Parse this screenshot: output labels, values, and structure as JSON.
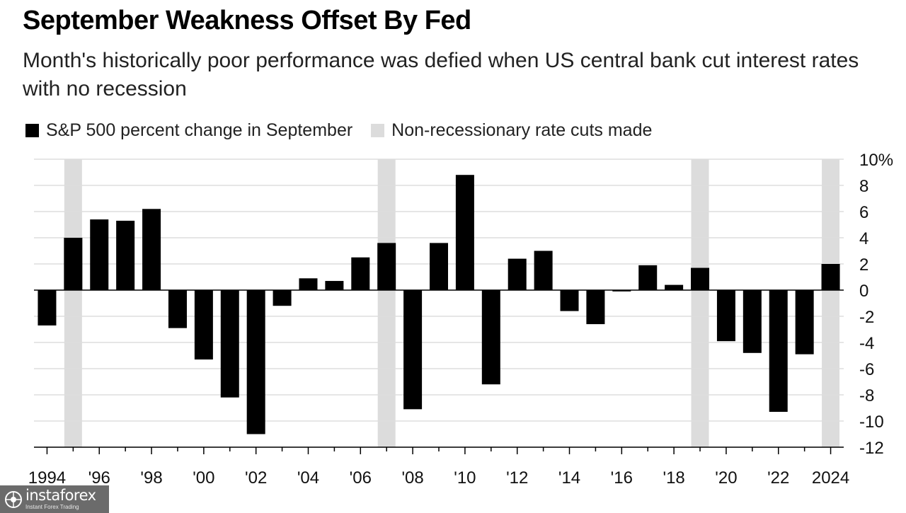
{
  "chart_data": {
    "type": "bar",
    "title": "September Weakness Offset By Fed",
    "subtitle": "Month's historically poor performance was defied when US central bank cut interest rates with no recession",
    "legend": [
      {
        "label": "S&P 500 percent change in September",
        "color": "#000000"
      },
      {
        "label": "Non-recessionary rate cuts made",
        "color": "#dcdcdc"
      }
    ],
    "x": [
      1994,
      1995,
      1996,
      1997,
      1998,
      1999,
      2000,
      2001,
      2002,
      2003,
      2004,
      2005,
      2006,
      2007,
      2008,
      2009,
      2010,
      2011,
      2012,
      2013,
      2014,
      2015,
      2016,
      2017,
      2018,
      2019,
      2020,
      2021,
      2022,
      2023,
      2024
    ],
    "values": [
      -2.7,
      4.0,
      5.4,
      5.3,
      6.2,
      -2.9,
      -5.3,
      -8.2,
      -11.0,
      -1.2,
      0.9,
      0.7,
      2.5,
      3.6,
      -9.1,
      3.6,
      8.8,
      -7.2,
      2.4,
      3.0,
      -1.6,
      -2.6,
      -0.1,
      1.9,
      0.4,
      1.7,
      -3.9,
      -4.8,
      -9.3,
      -4.9,
      2.0
    ],
    "rate_cut_years": [
      1995,
      2007,
      2019,
      2024
    ],
    "y_ticks": [
      {
        "value": 10,
        "label": "10%"
      },
      {
        "value": 8,
        "label": "8"
      },
      {
        "value": 6,
        "label": "6"
      },
      {
        "value": 4,
        "label": "4"
      },
      {
        "value": 2,
        "label": "2"
      },
      {
        "value": 0,
        "label": "0"
      },
      {
        "value": -2,
        "label": "-2"
      },
      {
        "value": -4,
        "label": "-4"
      },
      {
        "value": -6,
        "label": "-6"
      },
      {
        "value": -8,
        "label": "-8"
      },
      {
        "value": -10,
        "label": "-10"
      },
      {
        "value": -12,
        "label": "-12"
      }
    ],
    "x_tick_labels": [
      {
        "year": 1994,
        "label": "1994"
      },
      {
        "year": 1996,
        "label": "'96"
      },
      {
        "year": 1998,
        "label": "'98"
      },
      {
        "year": 2000,
        "label": "'00"
      },
      {
        "year": 2002,
        "label": "'02"
      },
      {
        "year": 2004,
        "label": "'04"
      },
      {
        "year": 2006,
        "label": "'06"
      },
      {
        "year": 2008,
        "label": "'08"
      },
      {
        "year": 2010,
        "label": "'10"
      },
      {
        "year": 2012,
        "label": "'12"
      },
      {
        "year": 2014,
        "label": "'14"
      },
      {
        "year": 2016,
        "label": "'16"
      },
      {
        "year": 2018,
        "label": "'18"
      },
      {
        "year": 2020,
        "label": "'20"
      },
      {
        "year": 2022,
        "label": "'22"
      },
      {
        "year": 2024,
        "label": "2024"
      }
    ],
    "ylim": [
      -12,
      10
    ],
    "xlabel": "",
    "ylabel": "",
    "grid": true,
    "legend_position": "top-left",
    "y_axis_side": "right"
  },
  "watermark": {
    "brand": "instaforex",
    "tagline": "Instant Forex Trading"
  },
  "colors": {
    "bar": "#000000",
    "shade": "#dcdcdc",
    "grid": "#dddddd",
    "axis": "#000000",
    "tick_text": "#111111"
  }
}
